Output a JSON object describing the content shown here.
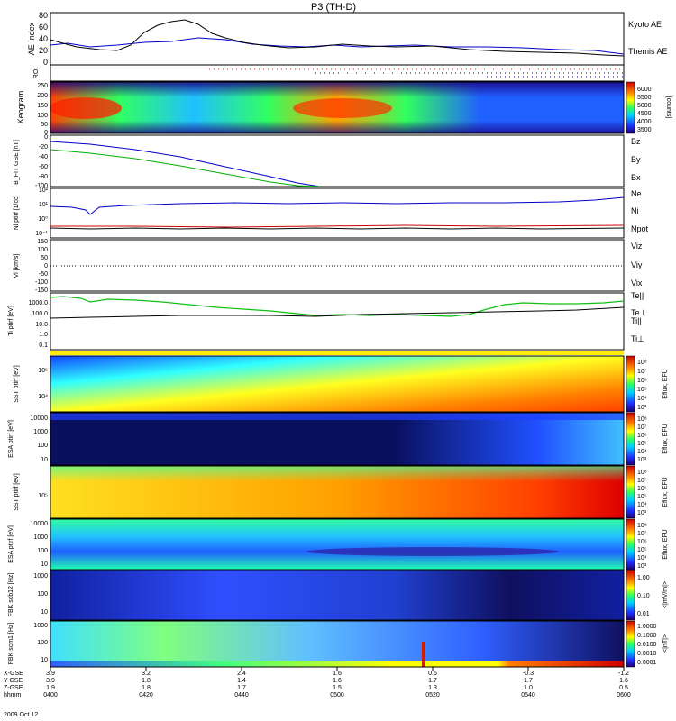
{
  "title": "P3 (TH-D)",
  "panels": [
    {
      "id": "ae",
      "ylabel": "AE Index",
      "yticks": [
        "80",
        "60",
        "40",
        "20",
        "0"
      ],
      "ylim": [
        0,
        80
      ],
      "legend": [
        {
          "label": "Kyoto AE",
          "color": "#0000c8"
        },
        {
          "label": "Themis AE",
          "color": "#000000"
        }
      ]
    },
    {
      "id": "roi",
      "ylabel": "ROI"
    },
    {
      "id": "keogram",
      "ylabel": "Keogram",
      "yticks": [
        "250",
        "200",
        "150",
        "100",
        "50",
        "0"
      ],
      "colorbar": {
        "ticks": [
          "6000",
          "5500",
          "5000",
          "4500",
          "4000",
          "3500"
        ],
        "label": "[counts]"
      }
    },
    {
      "id": "bfield",
      "ylabel": "B_FIT GSE [nT]",
      "yticks": [
        "0",
        "-20",
        "-40",
        "-60",
        "-80",
        "-100"
      ],
      "ylim": [
        -100,
        0
      ],
      "legend": [
        {
          "label": "Bz",
          "color": "#d00000"
        },
        {
          "label": "By",
          "color": "#00b000"
        },
        {
          "label": "Bx",
          "color": "#0000c8"
        }
      ]
    },
    {
      "id": "density",
      "ylabel": "Ni ptirf [1/cc]",
      "yticks": [
        "10²",
        "10¹",
        "10⁰",
        "10⁻¹"
      ],
      "legend": [
        {
          "label": "Ne",
          "color": "#d00000"
        },
        {
          "label": "Ni",
          "color": "#000000"
        },
        {
          "label": "Npot",
          "color": "#0000c8"
        }
      ]
    },
    {
      "id": "velocity",
      "ylabel": "Vi [km/s]",
      "yticks": [
        "150",
        "100",
        "50",
        "0",
        "-50",
        "-100",
        "-150"
      ],
      "ylim": [
        -150,
        150
      ],
      "legend": [
        {
          "label": "Viz",
          "color": "#d00000"
        },
        {
          "label": "Viy",
          "color": "#00b000"
        },
        {
          "label": "Vix",
          "color": "#0000c8"
        }
      ]
    },
    {
      "id": "temperature",
      "ylabel": "Ti ptirf [eV]",
      "yticks": [
        "1000.0",
        "100.0",
        "10.0",
        "1.0",
        "0.1"
      ],
      "legend": [
        {
          "label": "Te||",
          "color": "#000000"
        },
        {
          "label": "Te⊥",
          "color": "#d00000"
        },
        {
          "label": "Ti||",
          "color": "#00b000"
        },
        {
          "label": "Ti⊥",
          "color": "#0000c8"
        }
      ]
    },
    {
      "id": "sst_i",
      "ylabel": "SST ptirf [eV]",
      "yticks": [
        "10⁵",
        "10⁴"
      ],
      "colorbar": {
        "ticks": [
          "10⁸",
          "10⁷",
          "10⁶",
          "10⁵",
          "10⁴",
          "10³"
        ],
        "label": "Eflux, EFU"
      }
    },
    {
      "id": "esa_i",
      "ylabel": "ESA ptirf [eV]",
      "yticks": [
        "10000",
        "1000",
        "100",
        "10"
      ],
      "colorbar": {
        "ticks": [
          "10⁸",
          "10⁷",
          "10⁶",
          "10⁵",
          "10⁴",
          "10³"
        ],
        "label": "Eflux, EFU"
      }
    },
    {
      "id": "sst_e",
      "ylabel": "SST ptirf [eV]",
      "yticks": [
        "10⁵"
      ],
      "colorbar": {
        "ticks": [
          "10⁸",
          "10⁷",
          "10⁶",
          "10⁵",
          "10⁴",
          "10³"
        ],
        "label": "Eflux, EFU"
      }
    },
    {
      "id": "esa_e",
      "ylabel": "ESA ptirf [eV]",
      "yticks": [
        "10000",
        "1000",
        "100",
        "10"
      ],
      "colorbar": {
        "ticks": [
          "10⁸",
          "10⁷",
          "10⁶",
          "10⁵",
          "10⁴",
          "10³"
        ],
        "label": "Eflux, EFU"
      }
    },
    {
      "id": "fbk_b",
      "ylabel": "FBK scb12 [Hz]",
      "yticks": [
        "1000",
        "100",
        "10"
      ],
      "colorbar": {
        "ticks": [
          "1.00",
          "0.10",
          "0.01"
        ],
        "label": "<|mV/m|>"
      }
    },
    {
      "id": "fbk_e",
      "ylabel": "FBK scm1 [Hz]",
      "yticks": [
        "1000",
        "100",
        "10"
      ],
      "colorbar": {
        "ticks": [
          "1.0000",
          "0.1000",
          "0.0100",
          "0.0010",
          "0.0001"
        ],
        "label": "<|nT|>"
      }
    }
  ],
  "chart_data": {
    "type": "line",
    "title": "P3 (TH-D)",
    "x": [
      "0400",
      "0420",
      "0440",
      "0500",
      "0520",
      "0540",
      "0600"
    ],
    "series": [
      {
        "name": "Kyoto AE",
        "values": [
          30,
          25,
          40,
          27,
          27,
          25,
          20
        ]
      },
      {
        "name": "Themis AE",
        "values": [
          40,
          22,
          65,
          35,
          28,
          20,
          12
        ]
      },
      {
        "name": "Bx",
        "values": [
          -10,
          -22,
          -45,
          -100,
          null,
          null,
          null
        ]
      },
      {
        "name": "By",
        "values": [
          -25,
          -38,
          -60,
          -100,
          null,
          null,
          null
        ]
      },
      {
        "name": "Ti||",
        "values": [
          1000,
          700,
          400,
          80,
          100,
          500,
          500
        ]
      },
      {
        "name": "Te||",
        "values": [
          40,
          50,
          60,
          55,
          70,
          100,
          150
        ]
      }
    ]
  },
  "xaxis": {
    "rows": [
      {
        "label": "X-GSE",
        "values": [
          "3.9",
          "3.2",
          "2.4",
          "1.6",
          "0.6",
          "-0.3",
          "-1.2"
        ]
      },
      {
        "label": "Y-GSE",
        "values": [
          "3.9",
          "1.8",
          "1.4",
          "1.6",
          "1.7",
          "1.7",
          "1.6"
        ]
      },
      {
        "label": "Z-GSE",
        "values": [
          "1.9",
          "1.8",
          "1.7",
          "1.5",
          "1.3",
          "1.0",
          "0.5"
        ]
      },
      {
        "label": "hhmm",
        "values": [
          "0400",
          "0420",
          "0440",
          "0500",
          "0520",
          "0540",
          "0600"
        ]
      }
    ],
    "date": "2009 Oct 12"
  }
}
